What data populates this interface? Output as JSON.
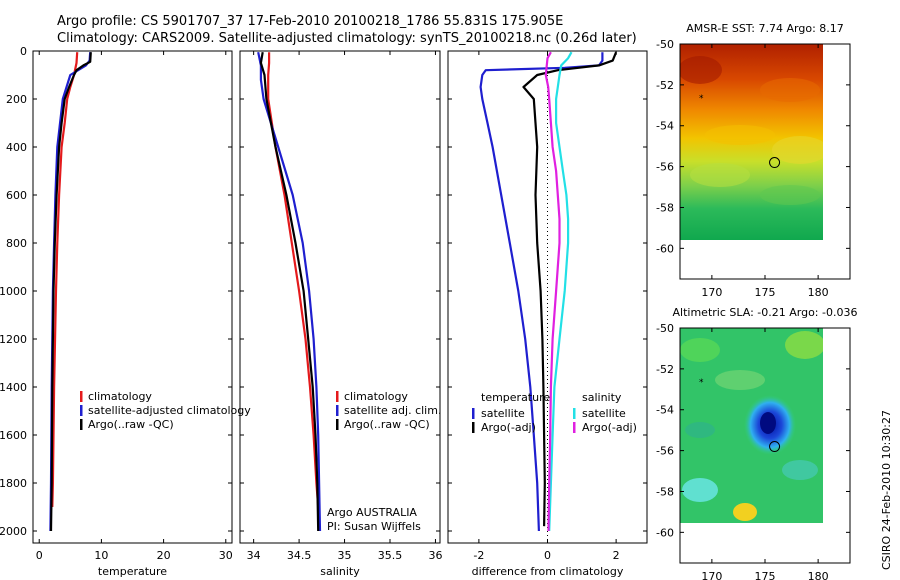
{
  "header": {
    "line1": "Argo profile: CS 5901707_37 17-Feb-2010 20100218_1786 55.831S 175.905E",
    "line2": "Climatology: CARS2009. Satellite-adjusted climatology: synTS_20100218.nc (0.26d later)"
  },
  "footer": {
    "stamp": "CSIRO 24-Feb-2010 10:30:27"
  },
  "colors": {
    "red": "#e41a1c",
    "blue": "#1f1fcf",
    "black": "#000000",
    "cyan": "#22e0e6",
    "magenta": "#e020e0"
  },
  "chart_data": [
    {
      "type": "line",
      "xlabel": "temperature",
      "ylabel": "",
      "xlim": [
        -1,
        31
      ],
      "ylim": [
        2050,
        0
      ],
      "xticks": [
        0,
        10,
        20,
        30
      ],
      "yticks": [
        0,
        200,
        400,
        600,
        800,
        1000,
        1200,
        1400,
        1600,
        1800,
        2000
      ],
      "legend": [
        "climatology",
        "satellite-adjusted climatology",
        "Argo(..raw -QC)"
      ],
      "series": [
        {
          "name": "climatology",
          "color": "red",
          "points": [
            [
              6.1,
              5
            ],
            [
              6.0,
              50
            ],
            [
              5.6,
              100
            ],
            [
              5.0,
              150
            ],
            [
              4.5,
              200
            ],
            [
              4.1,
              300
            ],
            [
              3.6,
              400
            ],
            [
              3.2,
              600
            ],
            [
              2.9,
              800
            ],
            [
              2.7,
              1000
            ],
            [
              2.4,
              1400
            ],
            [
              2.2,
              1800
            ],
            [
              2.1,
              1900
            ]
          ]
        },
        {
          "name": "satellite-adjusted climatology",
          "color": "blue",
          "points": [
            [
              8.2,
              5
            ],
            [
              8.1,
              40
            ],
            [
              7.5,
              60
            ],
            [
              5.0,
              100
            ],
            [
              3.8,
              200
            ],
            [
              2.9,
              400
            ],
            [
              2.6,
              600
            ],
            [
              2.4,
              800
            ],
            [
              2.2,
              1000
            ],
            [
              2.0,
              1400
            ],
            [
              1.9,
              1800
            ],
            [
              1.8,
              2000
            ]
          ]
        },
        {
          "name": "Argo(..raw -QC)",
          "color": "black",
          "points": [
            [
              8.3,
              5
            ],
            [
              8.2,
              45
            ],
            [
              7.1,
              60
            ],
            [
              6.0,
              80
            ],
            [
              5.6,
              100
            ],
            [
              4.8,
              150
            ],
            [
              4.1,
              200
            ],
            [
              3.6,
              300
            ],
            [
              3.2,
              400
            ],
            [
              2.8,
              600
            ],
            [
              2.5,
              800
            ],
            [
              2.3,
              1000
            ],
            [
              2.1,
              1400
            ],
            [
              2.0,
              1800
            ],
            [
              1.9,
              2000
            ]
          ]
        }
      ]
    },
    {
      "type": "line",
      "xlabel": "salinity",
      "ylabel": "",
      "xlim": [
        33.85,
        36.05
      ],
      "ylim": [
        2050,
        0
      ],
      "xticks": [
        34,
        34.5,
        35,
        35.5,
        36
      ],
      "yticks": [
        0,
        200,
        400,
        600,
        800,
        1000,
        1200,
        1400,
        1600,
        1800,
        2000
      ],
      "legend": [
        "climatology",
        "satellite adj. clim.",
        "Argo(..raw -QC)"
      ],
      "annotation": [
        "Argo AUSTRALIA",
        "PI: Susan Wijffels"
      ],
      "series": [
        {
          "name": "climatology",
          "color": "red",
          "points": [
            [
              34.17,
              5
            ],
            [
              34.17,
              50
            ],
            [
              34.16,
              100
            ],
            [
              34.16,
              200
            ],
            [
              34.24,
              400
            ],
            [
              34.34,
              600
            ],
            [
              34.42,
              800
            ],
            [
              34.5,
              1000
            ],
            [
              34.57,
              1200
            ],
            [
              34.62,
              1400
            ],
            [
              34.66,
              1600
            ],
            [
              34.69,
              1800
            ],
            [
              34.71,
              1900
            ]
          ]
        },
        {
          "name": "satellite adj. clim.",
          "color": "blue",
          "points": [
            [
              34.05,
              5
            ],
            [
              34.08,
              60
            ],
            [
              34.08,
              120
            ],
            [
              34.11,
              200
            ],
            [
              34.27,
              400
            ],
            [
              34.43,
              600
            ],
            [
              34.54,
              800
            ],
            [
              34.61,
              1000
            ],
            [
              34.66,
              1200
            ],
            [
              34.69,
              1400
            ],
            [
              34.71,
              1600
            ],
            [
              34.72,
              1800
            ],
            [
              34.73,
              2000
            ]
          ]
        },
        {
          "name": "Argo(..raw -QC)",
          "color": "black",
          "points": [
            [
              34.1,
              5
            ],
            [
              34.08,
              50
            ],
            [
              34.12,
              100
            ],
            [
              34.14,
              200
            ],
            [
              34.24,
              400
            ],
            [
              34.36,
              600
            ],
            [
              34.46,
              800
            ],
            [
              34.55,
              1000
            ],
            [
              34.6,
              1200
            ],
            [
              34.65,
              1400
            ],
            [
              34.68,
              1600
            ],
            [
              34.7,
              1800
            ],
            [
              34.71,
              2000
            ]
          ]
        }
      ]
    },
    {
      "type": "line",
      "xlabel": "difference from climatology",
      "ylabel": "",
      "xlim": [
        -2.9,
        2.9
      ],
      "ylim": [
        2050,
        0
      ],
      "xticks": [
        -2,
        0,
        2
      ],
      "yticks": [
        0,
        200,
        400,
        600,
        800,
        1000,
        1200,
        1400,
        1600,
        1800,
        2000
      ],
      "legend_left_title": "temperature",
      "legend_right_title": "salinity",
      "legend_left": [
        "satellite",
        "Argo(-adj)"
      ],
      "legend_right": [
        "satellite",
        "Argo(-adj)"
      ],
      "series": [
        {
          "name": "satellite",
          "color": "blue",
          "points": [
            [
              1.6,
              5
            ],
            [
              1.6,
              40
            ],
            [
              1.5,
              60
            ],
            [
              0.5,
              70
            ],
            [
              -1.8,
              80
            ],
            [
              -1.9,
              100
            ],
            [
              -1.95,
              150
            ],
            [
              -1.9,
              200
            ],
            [
              -1.75,
              300
            ],
            [
              -1.6,
              400
            ],
            [
              -1.35,
              600
            ],
            [
              -1.1,
              800
            ],
            [
              -0.85,
              1000
            ],
            [
              -0.65,
              1200
            ],
            [
              -0.5,
              1400
            ],
            [
              -0.4,
              1600
            ],
            [
              -0.3,
              1800
            ],
            [
              -0.25,
              2000
            ]
          ]
        },
        {
          "name": "Argo(-adj)",
          "color": "black",
          "points": [
            [
              2.0,
              5
            ],
            [
              1.9,
              40
            ],
            [
              1.5,
              60
            ],
            [
              0.3,
              80
            ],
            [
              -0.3,
              100
            ],
            [
              -0.7,
              150
            ],
            [
              -0.4,
              200
            ],
            [
              -0.35,
              300
            ],
            [
              -0.3,
              400
            ],
            [
              -0.35,
              600
            ],
            [
              -0.3,
              800
            ],
            [
              -0.2,
              1000
            ],
            [
              -0.15,
              1200
            ],
            [
              -0.12,
              1400
            ],
            [
              -0.1,
              1600
            ],
            [
              -0.08,
              1800
            ],
            [
              -0.1,
              1980
            ]
          ]
        },
        {
          "name": "satellite",
          "color": "cyan",
          "points": [
            [
              0.7,
              5
            ],
            [
              0.6,
              30
            ],
            [
              0.4,
              60
            ],
            [
              0.35,
              100
            ],
            [
              0.3,
              150
            ],
            [
              0.25,
              200
            ],
            [
              0.25,
              300
            ],
            [
              0.35,
              400
            ],
            [
              0.45,
              500
            ],
            [
              0.55,
              600
            ],
            [
              0.6,
              700
            ],
            [
              0.6,
              800
            ],
            [
              0.55,
              900
            ],
            [
              0.5,
              1000
            ],
            [
              0.35,
              1200
            ],
            [
              0.2,
              1400
            ],
            [
              0.15,
              1600
            ],
            [
              0.1,
              1800
            ],
            [
              0.05,
              2000
            ]
          ]
        },
        {
          "name": "Argo(-adj)",
          "color": "magenta",
          "points": [
            [
              0.1,
              5
            ],
            [
              0.0,
              30
            ],
            [
              -0.05,
              100
            ],
            [
              0.02,
              150
            ],
            [
              0.05,
              200
            ],
            [
              0.1,
              300
            ],
            [
              0.15,
              400
            ],
            [
              0.25,
              500
            ],
            [
              0.3,
              600
            ],
            [
              0.35,
              700
            ],
            [
              0.35,
              800
            ],
            [
              0.3,
              900
            ],
            [
              0.25,
              1000
            ],
            [
              0.15,
              1200
            ],
            [
              0.1,
              1400
            ],
            [
              0.08,
              1600
            ],
            [
              0.05,
              1800
            ],
            [
              0.03,
              2000
            ]
          ]
        }
      ]
    },
    {
      "type": "heatmap",
      "title": "AMSR-E SST: 7.74 Argo: 8.17",
      "xlim": [
        167,
        183
      ],
      "ylim": [
        -61.5,
        -50
      ],
      "xticks": [
        170,
        175,
        180
      ],
      "yticks": [
        -50,
        -52,
        -54,
        -56,
        -58,
        -60
      ],
      "data_extent": {
        "x": [
          167,
          180
        ],
        "y": [
          -60,
          -50
        ]
      },
      "float_position": [
        175.9,
        -55.8
      ],
      "marker": [
        169,
        -52.6
      ]
    },
    {
      "type": "heatmap",
      "title": "Altimetric SLA: -0.21 Argo: -0.036",
      "xlim": [
        167,
        183
      ],
      "ylim": [
        -61.5,
        -50
      ],
      "xticks": [
        170,
        175,
        180
      ],
      "yticks": [
        -50,
        -52,
        -54,
        -56,
        -58,
        -60
      ],
      "data_extent": {
        "x": [
          167,
          180
        ],
        "y": [
          -60,
          -50
        ]
      },
      "float_position": [
        175.9,
        -55.8
      ],
      "marker": [
        169,
        -52.6
      ]
    }
  ]
}
